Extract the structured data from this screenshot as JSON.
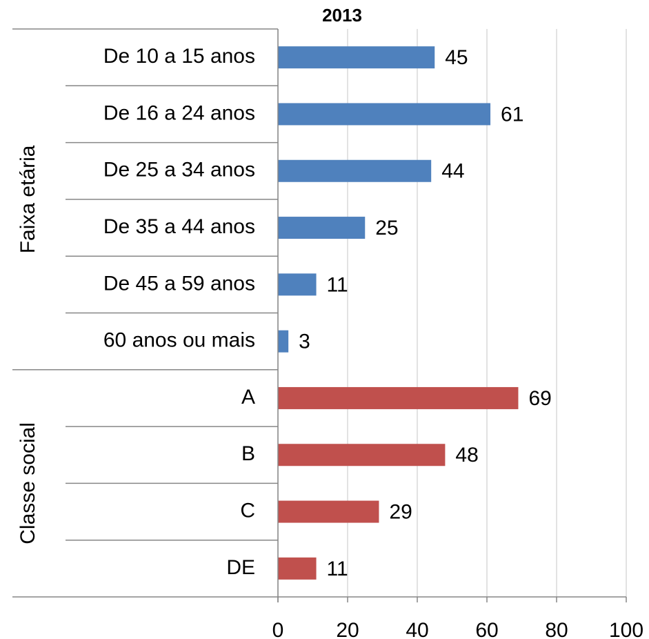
{
  "chart_data": {
    "type": "bar",
    "orientation": "horizontal",
    "title": "2013",
    "groups": [
      {
        "name": "Faixa etária",
        "color": "#4f81bd",
        "categories": [
          "De 10 a 15 anos",
          "De 16 a 24 anos",
          "De 25 a 34 anos",
          "De 35 a 44 anos",
          "De 45 a 59 anos",
          "60 anos ou mais"
        ],
        "values": [
          45,
          61,
          44,
          25,
          11,
          3
        ]
      },
      {
        "name": "Classe social",
        "color": "#c0504d",
        "categories": [
          "A",
          "B",
          "C",
          "DE"
        ],
        "values": [
          69,
          48,
          29,
          11
        ]
      }
    ],
    "xlim": [
      0,
      100
    ],
    "xticks": [
      0,
      20,
      40,
      60,
      80,
      100
    ],
    "grid": true
  }
}
